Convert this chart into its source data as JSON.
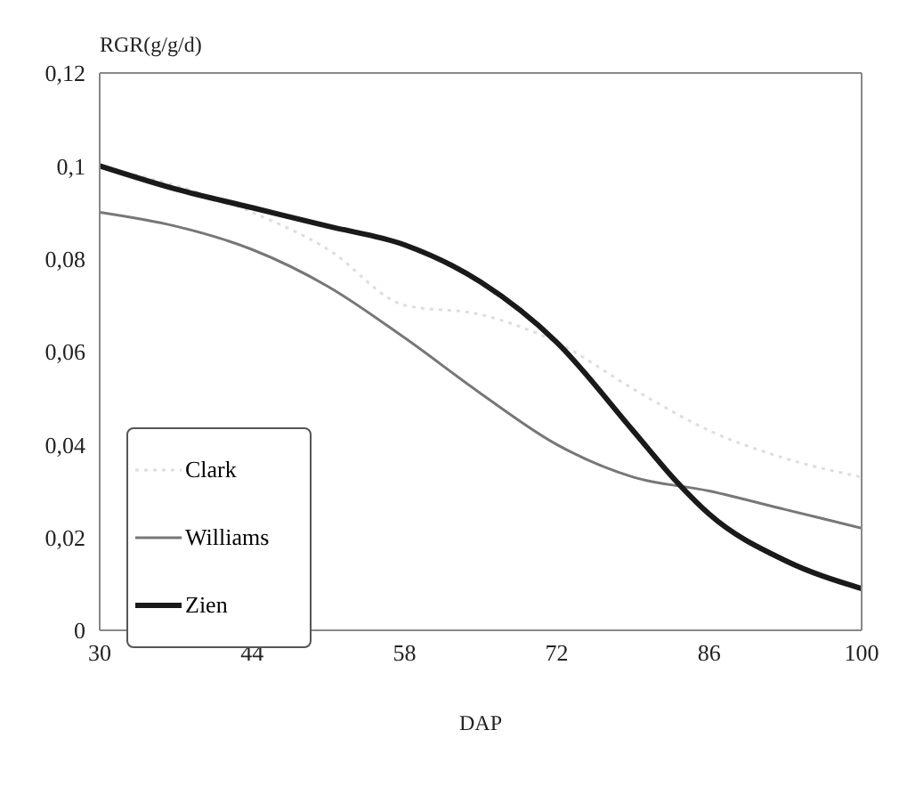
{
  "chart_data": {
    "type": "line",
    "ylabel": "RGR(g/g/d)",
    "xlabel": "DAP",
    "xlim": [
      30,
      100
    ],
    "xticks": [
      30,
      44,
      58,
      72,
      86,
      100
    ],
    "ylim": [
      0,
      0.12
    ],
    "yticks": [
      {
        "value": 0,
        "label": "0"
      },
      {
        "value": 0.02,
        "label": "0,02"
      },
      {
        "value": 0.04,
        "label": "0,04"
      },
      {
        "value": 0.06,
        "label": "0,06"
      },
      {
        "value": 0.08,
        "label": "0,08"
      },
      {
        "value": 0.1,
        "label": "0,1"
      },
      {
        "value": 0.12,
        "label": "0,12"
      }
    ],
    "legend": "bottom left",
    "marker": "none",
    "series": [
      {
        "name": "Clark",
        "color": "#dedede",
        "line_style": "dotted",
        "x": [
          30,
          44,
          51,
          58,
          65,
          72,
          79,
          86,
          93,
          100
        ],
        "values": [
          0.1,
          0.09,
          0.082,
          0.07,
          0.068,
          0.062,
          0.052,
          0.043,
          0.037,
          0.033
        ]
      },
      {
        "name": "Williams",
        "color": "#777777",
        "line_style": "solid",
        "x": [
          30,
          37,
          44,
          51,
          58,
          65,
          72,
          79,
          86,
          93,
          100
        ],
        "values": [
          0.09,
          0.087,
          0.082,
          0.074,
          0.063,
          0.051,
          0.04,
          0.033,
          0.03,
          0.026,
          0.022
        ]
      },
      {
        "name": "Zien",
        "color": "#1a1a1a",
        "line_style": "solid",
        "x": [
          30,
          37,
          44,
          51,
          58,
          65,
          72,
          79,
          83,
          86,
          93,
          100
        ],
        "values": [
          0.1,
          0.095,
          0.091,
          0.087,
          0.083,
          0.075,
          0.062,
          0.043,
          0.032,
          0.025,
          0.015,
          0.009
        ]
      }
    ]
  }
}
